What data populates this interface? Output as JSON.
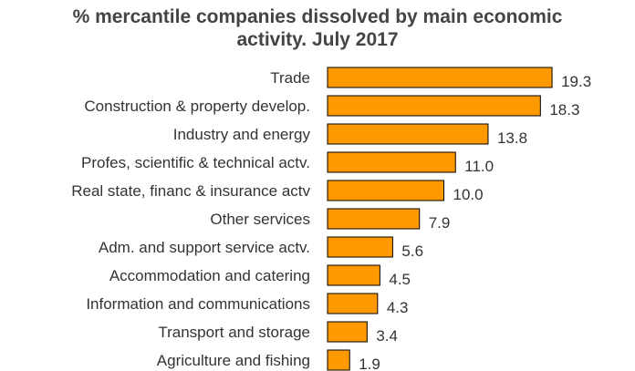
{
  "chart_data": {
    "type": "bar",
    "orientation": "horizontal",
    "title": "% mercantile companies  dissolved by main economic activity. July 2017",
    "title_lines": [
      "% mercantile companies  dissolved by main economic",
      "activity. July 2017"
    ],
    "categories": [
      "Trade",
      "Construction & property develop.",
      "Industry and energy",
      "Profes, scientific & technical actv.",
      "Real state, financ & insurance actv",
      "Other services",
      "Adm. and support service actv.",
      "Accommodation and catering",
      "Information and communications",
      "Transport and storage",
      "Agriculture and fishing"
    ],
    "values": [
      19.3,
      18.3,
      13.8,
      11.0,
      10.0,
      7.9,
      5.6,
      4.5,
      4.3,
      3.4,
      1.9
    ],
    "value_labels": [
      "19.3",
      "18.3",
      "13.8",
      "11.0",
      "10.0",
      "7.9",
      "5.6",
      "4.5",
      "4.3",
      "3.4",
      "1.9"
    ],
    "xlim": [
      0,
      20
    ],
    "grid": false,
    "legend": "none",
    "bar_color": "#FF9900"
  }
}
